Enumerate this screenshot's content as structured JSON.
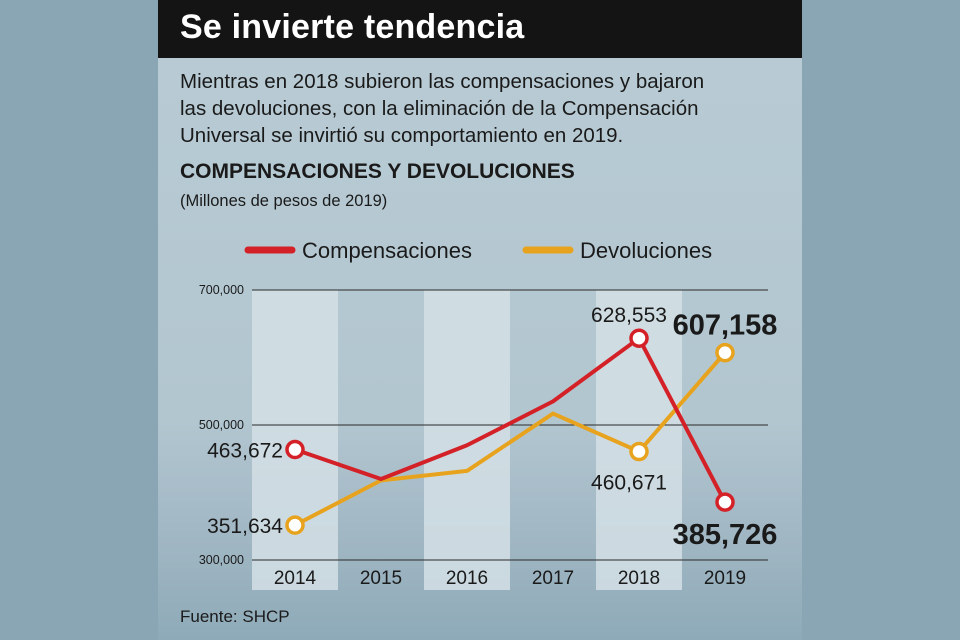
{
  "header": {
    "title": "Se invierte tendencia"
  },
  "intro": {
    "lines": [
      "Mientras en 2018 subieron las compensaciones y bajaron",
      "las devoluciones, con la eliminación de la Compensación",
      "Universal se invirtió su comportamiento en 2019."
    ]
  },
  "footer": {
    "source": "Fuente: SHCP"
  },
  "colors": {
    "compensaciones": "#d42027",
    "devoluciones": "#e8a31e"
  },
  "chart_data": {
    "type": "line",
    "title": "COMPENSACIONES Y DEVOLUCIONES",
    "subtitle": "(Millones de pesos de 2019)",
    "categories": [
      "2014",
      "2015",
      "2016",
      "2017",
      "2018",
      "2019"
    ],
    "series": [
      {
        "name": "Compensaciones",
        "values": [
          463672,
          420000,
          470000,
          535000,
          628553,
          385726
        ],
        "labels": [
          "463,672",
          "",
          "",
          "",
          "628,553",
          "385,726"
        ]
      },
      {
        "name": "Devoluciones",
        "values": [
          351634,
          418000,
          432000,
          517000,
          460671,
          607158
        ],
        "labels": [
          "351,634",
          "",
          "",
          "",
          "460,671",
          "607,158"
        ]
      }
    ],
    "yticks": [
      "300,000",
      "500,000",
      "700,000"
    ],
    "ylim": [
      300000,
      700000
    ],
    "legend": "top",
    "grid": true
  }
}
